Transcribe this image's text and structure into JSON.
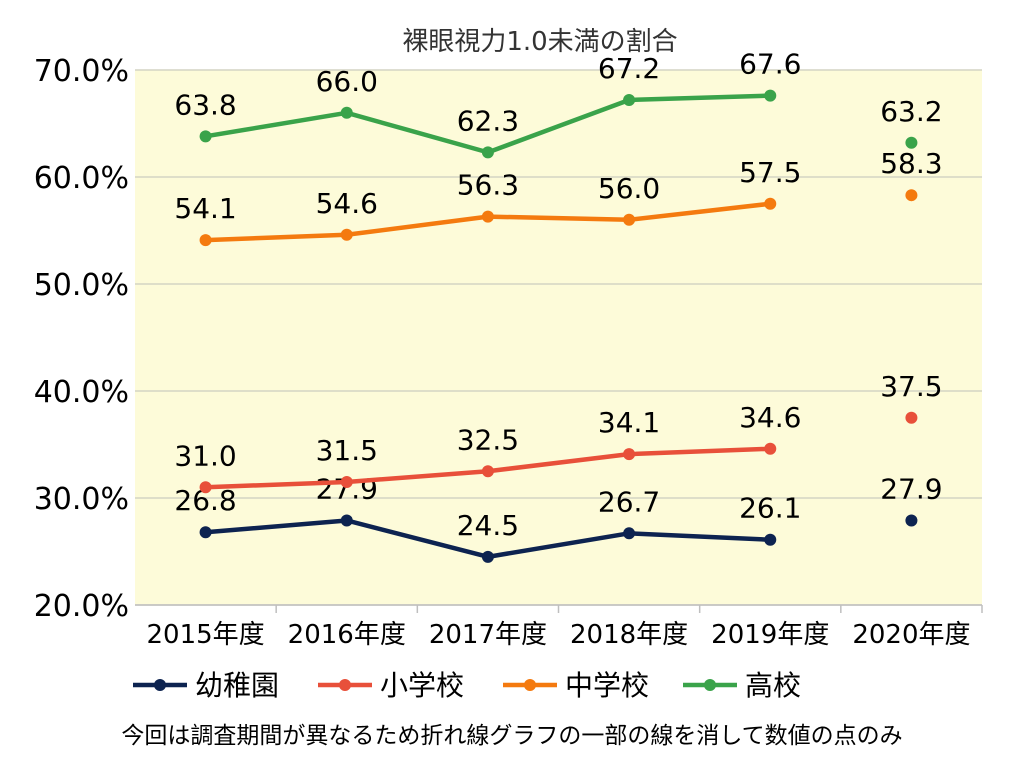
{
  "chart_data": {
    "type": "line",
    "title": "裸眼視力1.0未満の割合",
    "categories": [
      "2015年度",
      "2016年度",
      "2017年度",
      "2018年度",
      "2019年度",
      "2020年度"
    ],
    "ylim": [
      20.0,
      70.0
    ],
    "yticks": [
      "20.0%",
      "30.0%",
      "40.0%",
      "50.0%",
      "60.0%",
      "70.0%"
    ],
    "ytick_values": [
      20,
      30,
      40,
      50,
      60,
      70
    ],
    "grid": true,
    "legend_position": "bottom",
    "series": [
      {
        "name": "幼稚園",
        "color": "#0d2350",
        "values": [
          26.8,
          27.9,
          24.5,
          26.7,
          26.1,
          27.9
        ],
        "labels": [
          "26.8",
          "27.9",
          "24.5",
          "26.7",
          "26.1",
          "27.9"
        ]
      },
      {
        "name": "小学校",
        "color": "#e8503a",
        "values": [
          31.0,
          31.5,
          32.5,
          34.1,
          34.6,
          37.5
        ],
        "labels": [
          "31.0",
          "31.5",
          "32.5",
          "34.1",
          "34.6",
          "37.5"
        ]
      },
      {
        "name": "中学校",
        "color": "#f47a0f",
        "values": [
          54.1,
          54.6,
          56.3,
          56.0,
          57.5,
          58.3
        ],
        "labels": [
          "54.1",
          "54.6",
          "56.3",
          "56.0",
          "57.5",
          "58.3"
        ]
      },
      {
        "name": "高校",
        "color": "#3aa34a",
        "values": [
          63.8,
          66.0,
          62.3,
          67.2,
          67.6,
          63.2
        ],
        "labels": [
          "63.8",
          "66.0",
          "62.3",
          "67.2",
          "67.6",
          "63.2"
        ]
      }
    ],
    "connected_points": 5,
    "annotation": "今回は調査期間が異なるため折れ線グラフの一部の線を消して数値の点のみ"
  },
  "colors": {
    "plot_background": "#fdfbd9",
    "grid": "#d4d4c4"
  }
}
